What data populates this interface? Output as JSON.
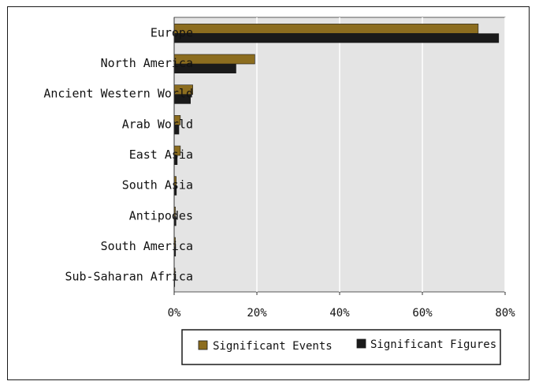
{
  "chart_data": {
    "type": "bar",
    "orientation": "horizontal",
    "categories": [
      "Europe",
      "North America",
      "Ancient Western World",
      "Arab World",
      "East Asia",
      "South Asia",
      "Antipodes",
      "South America",
      "Sub-Saharan Africa"
    ],
    "series": [
      {
        "name": "Significant Events",
        "color": "#8c6d1f",
        "values": [
          73.5,
          19.5,
          4.5,
          1.5,
          1.5,
          0.5,
          0.3,
          0.3,
          0.2
        ]
      },
      {
        "name": "Significant Figures",
        "color": "#1a1a1a",
        "values": [
          78.5,
          15.0,
          4.0,
          1.2,
          0.8,
          0.6,
          0.5,
          0.4,
          0.2
        ]
      }
    ],
    "xlim": [
      0,
      80
    ],
    "x_ticks": [
      "0%",
      "20%",
      "40%",
      "60%",
      "80%"
    ],
    "grid": true,
    "plot_background": "#e4e4e4",
    "legend_position": "bottom"
  }
}
